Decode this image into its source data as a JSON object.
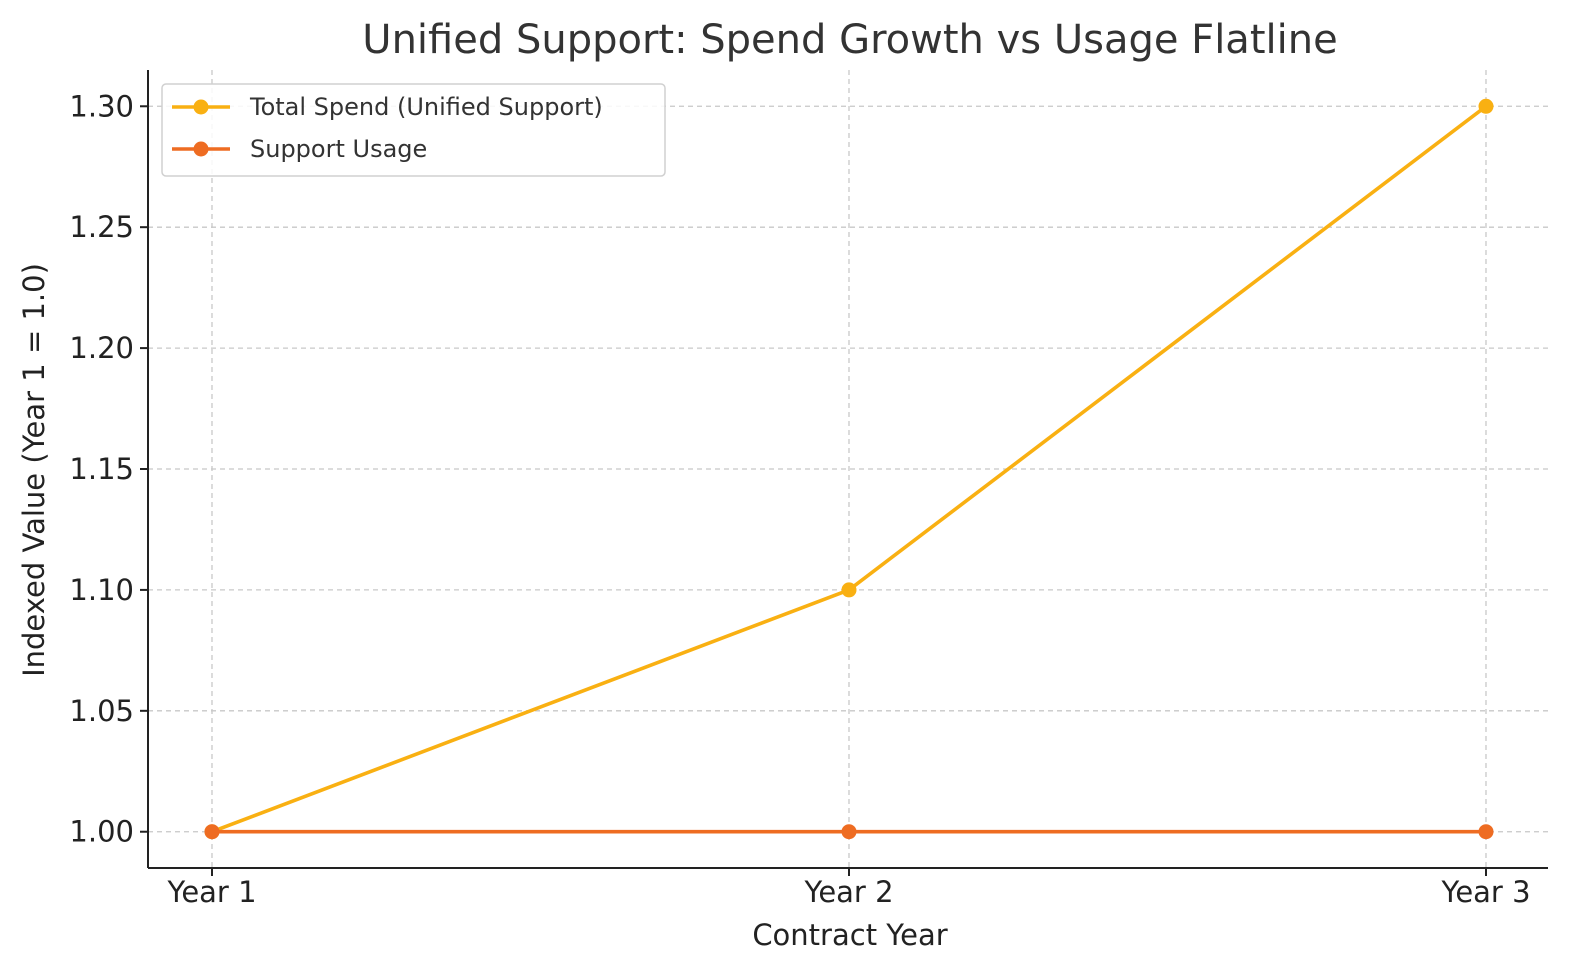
{
  "chart_data": {
    "type": "line",
    "title": "Unified Support: Spend Growth vs Usage Flatline",
    "xlabel": "Contract Year",
    "ylabel": "Indexed Value (Year 1 = 1.0)",
    "categories": [
      "Year 1",
      "Year 2",
      "Year 3"
    ],
    "ylim": [
      0.985,
      1.315
    ],
    "yticks": [
      1.0,
      1.05,
      1.1,
      1.15,
      1.2,
      1.25,
      1.3
    ],
    "ytick_labels": [
      "1.00",
      "1.05",
      "1.10",
      "1.15",
      "1.20",
      "1.25",
      "1.30"
    ],
    "grid": true,
    "legend_position": "top-left",
    "series": [
      {
        "name": "Total Spend (Unified Support)",
        "values": [
          1.0,
          1.1,
          1.3
        ],
        "color": "#F9B012"
      },
      {
        "name": "Support Usage",
        "values": [
          1.0,
          1.0,
          1.0
        ],
        "color": "#EE6C22"
      }
    ]
  }
}
